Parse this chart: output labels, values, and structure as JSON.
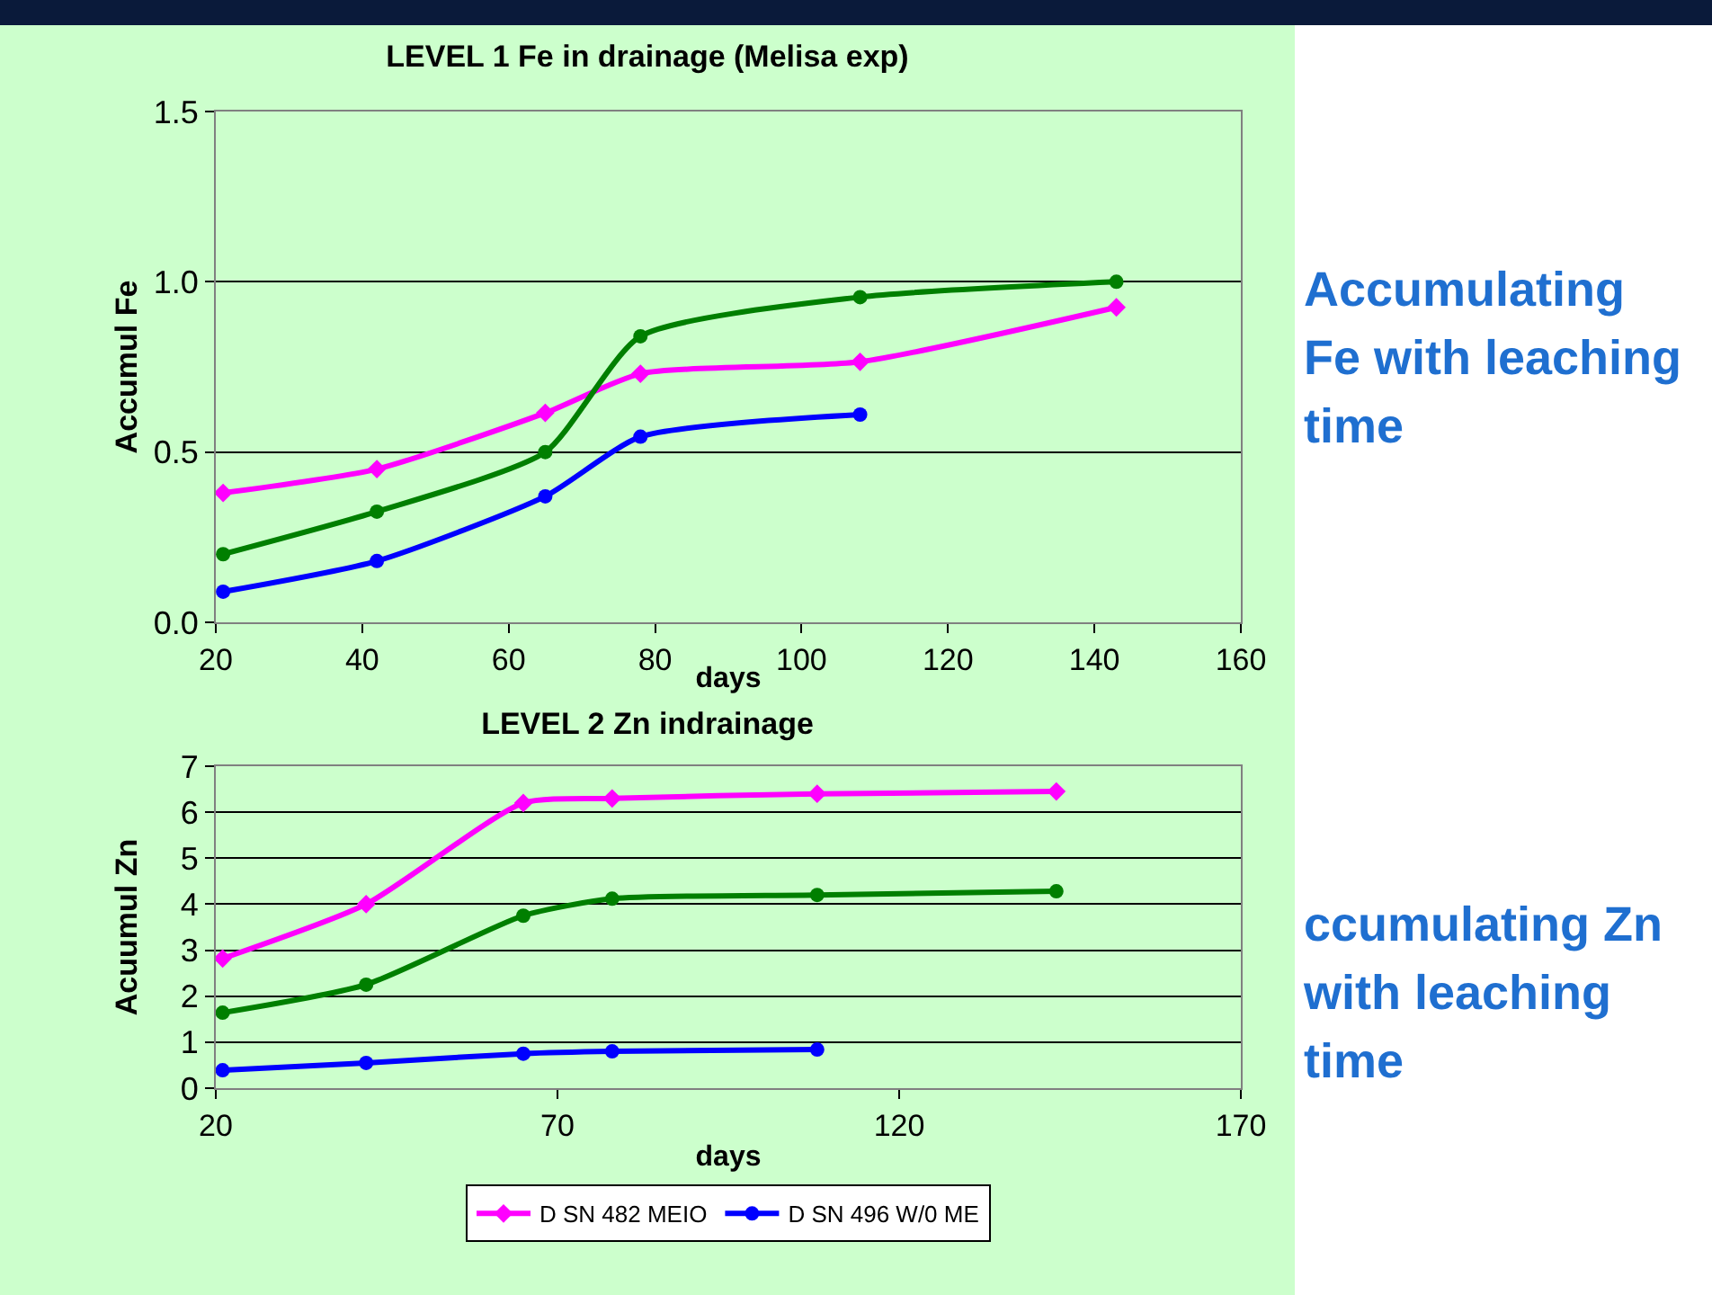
{
  "chart_data": [
    {
      "type": "line",
      "title": "LEVEL 1 Fe in drainage (Melisa exp)",
      "xlabel": "days",
      "ylabel": "Accumul Fe",
      "xlim": [
        20,
        160
      ],
      "xticks": [
        20,
        40,
        60,
        80,
        100,
        120,
        140,
        160
      ],
      "ylim": [
        0,
        1.5
      ],
      "yticks": [
        {
          "value": 0,
          "label": "0.0"
        },
        {
          "value": 0.5,
          "label": "0.5"
        },
        {
          "value": 1,
          "label": "1.0"
        },
        {
          "value": 1.5,
          "label": "1.5"
        }
      ],
      "grid": "y",
      "legend": false,
      "line_style": "solid",
      "series": [
        {
          "color": "#ff00ff",
          "marker": "diamond",
          "x": [
            21,
            42,
            65,
            78,
            108,
            143
          ],
          "values": [
            0.38,
            0.45,
            0.615,
            0.73,
            0.765,
            0.925
          ]
        },
        {
          "color": "#0000ff",
          "marker": "circle",
          "x": [
            21,
            42,
            65,
            78,
            108
          ],
          "values": [
            0.09,
            0.18,
            0.37,
            0.545,
            0.61
          ]
        },
        {
          "color": "#007f00",
          "marker": "circle",
          "x": [
            21,
            42,
            65,
            78,
            108,
            143
          ],
          "values": [
            0.2,
            0.325,
            0.5,
            0.84,
            0.955,
            1.0
          ]
        }
      ],
      "annotations": [
        "Accumulating Fe with leaching time"
      ]
    },
    {
      "type": "line",
      "title": "LEVEL 2 Zn indrainage",
      "xlabel": "days",
      "ylabel": "Acuumul Zn",
      "xlim": [
        20,
        170
      ],
      "xticks": [
        20,
        70,
        120,
        170
      ],
      "ylim": [
        0,
        7
      ],
      "yticks": [
        0,
        1,
        2,
        3,
        4,
        5,
        6,
        7
      ],
      "grid": "y",
      "legend": "bottom",
      "line_style": "solid",
      "series": [
        {
          "name": "D SN 482 MEIO",
          "color": "#ff00ff",
          "marker": "diamond",
          "x": [
            21,
            42,
            65,
            78,
            108,
            143
          ],
          "values": [
            2.82,
            4.0,
            6.2,
            6.3,
            6.4,
            6.45
          ]
        },
        {
          "name": "D SN 496 W/0 ME",
          "color": "#0000ff",
          "marker": "circle",
          "x": [
            21,
            42,
            65,
            78,
            108
          ],
          "values": [
            0.39,
            0.55,
            0.75,
            0.8,
            0.84
          ]
        },
        {
          "color": "#007f00",
          "marker": "circle",
          "x": [
            21,
            42,
            65,
            78,
            108,
            143
          ],
          "values": [
            1.64,
            2.25,
            3.75,
            4.12,
            4.2,
            4.28
          ]
        }
      ],
      "annotations": [
        "ccumulating Zn with leaching time"
      ]
    }
  ]
}
